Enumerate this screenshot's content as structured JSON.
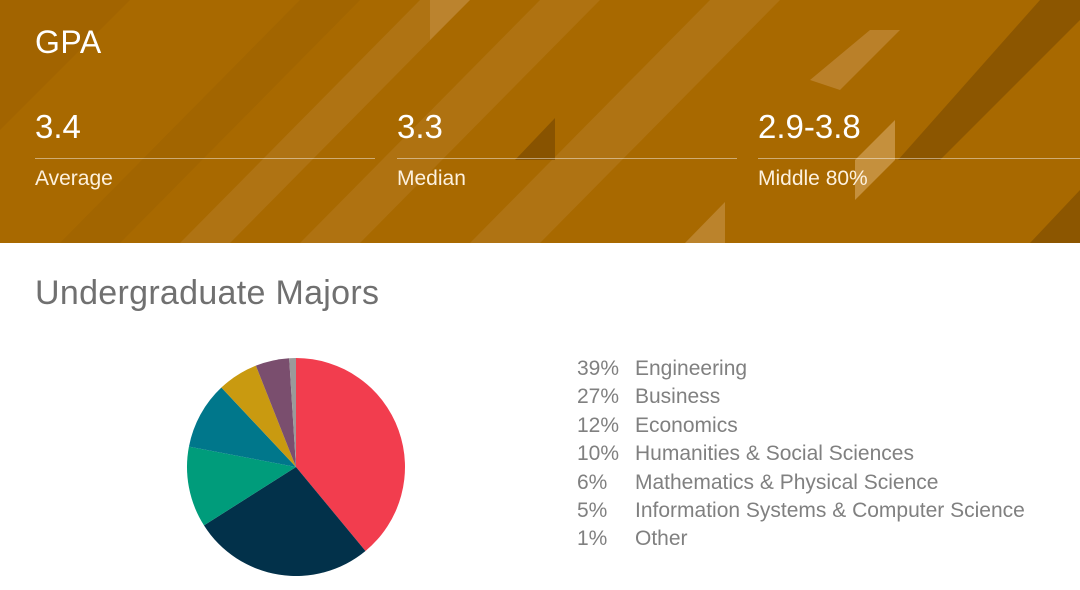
{
  "gpa": {
    "title": "GPA",
    "stats": [
      {
        "value": "3.4",
        "label": "Average"
      },
      {
        "value": "3.3",
        "label": "Median"
      },
      {
        "value": "2.9-3.8",
        "label": "Middle 80%"
      }
    ]
  },
  "colors": {
    "banner": "#a86900"
  },
  "chart_data": {
    "type": "pie",
    "title": "Undergraduate Majors",
    "slices": [
      {
        "label": "Engineering",
        "pct_label": "39%",
        "value": 39,
        "color": "#f23d4e"
      },
      {
        "label": "Business",
        "pct_label": "27%",
        "value": 27,
        "color": "#02314a"
      },
      {
        "label": "Economics",
        "pct_label": "12%",
        "value": 12,
        "color": "#009c7b"
      },
      {
        "label": "Humanities & Social Sciences",
        "pct_label": "10%",
        "value": 10,
        "color": "#00778b"
      },
      {
        "label": "Mathematics & Physical Science",
        "pct_label": "6%",
        "value": 6,
        "color": "#c99a10"
      },
      {
        "label": "Information Systems & Computer Science",
        "pct_label": "5%",
        "value": 5,
        "color": "#7a4e6e"
      },
      {
        "label": "Other",
        "pct_label": "1%",
        "value": 1,
        "color": "#9a9a9a"
      }
    ],
    "legend_position": "right"
  }
}
